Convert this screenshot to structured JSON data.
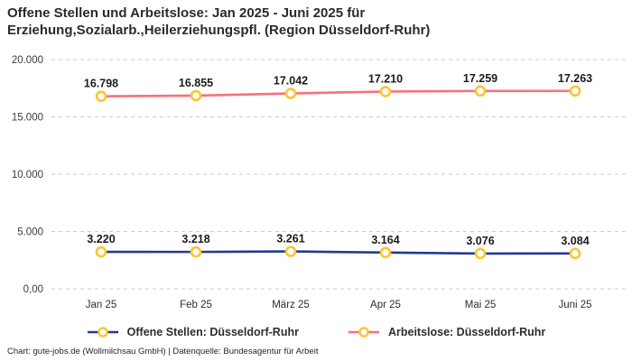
{
  "title": {
    "line1": "Offene Stellen und Arbeitslose: Jan 2025 - Juni 2025 für",
    "line2": "Erziehung,Sozialarb.,Heilerziehungspfl. (Region Düsseldorf-Ruhr)"
  },
  "footer": "Chart: gute-jobs.de (Wollmilchsau GmbH) | Datenquelle: Bundesagentur für Arbeit",
  "chart_data": {
    "type": "line",
    "title": "Offene Stellen und Arbeitslose: Jan 2025 - Juni 2025 für Erziehung,Sozialarb.,Heilerziehungspfl. (Region Düsseldorf-Ruhr)",
    "categories": [
      "Jan 25",
      "Feb 25",
      "März 25",
      "Apr 25",
      "Mai 25",
      "Juni 25"
    ],
    "series": [
      {
        "name": "Offene Stellen: Düsseldorf-Ruhr",
        "color": "#223a94",
        "values": [
          3220,
          3218,
          3261,
          3164,
          3076,
          3084
        ],
        "labels": [
          "3.220",
          "3.218",
          "3.261",
          "3.164",
          "3.076",
          "3.084"
        ]
      },
      {
        "name": "Arbeitslose: Düsseldorf-Ruhr",
        "color": "#f8707e",
        "values": [
          16798,
          16855,
          17042,
          17210,
          17259,
          17263
        ],
        "labels": [
          "16.798",
          "16.855",
          "17.042",
          "17.210",
          "17.259",
          "17.263"
        ]
      }
    ],
    "yticks": [
      {
        "label": "0,00",
        "value": 0
      },
      {
        "label": "5.000",
        "value": 5000
      },
      {
        "label": "10.000",
        "value": 10000
      },
      {
        "label": "15.000",
        "value": 15000
      },
      {
        "label": "20.000",
        "value": 20000
      }
    ],
    "ylim": [
      0,
      20000
    ],
    "grid": "dashed-horizontal",
    "legend_position": "bottom",
    "marker_color": "#fcc52f",
    "marker_fill": "#ffffff"
  }
}
